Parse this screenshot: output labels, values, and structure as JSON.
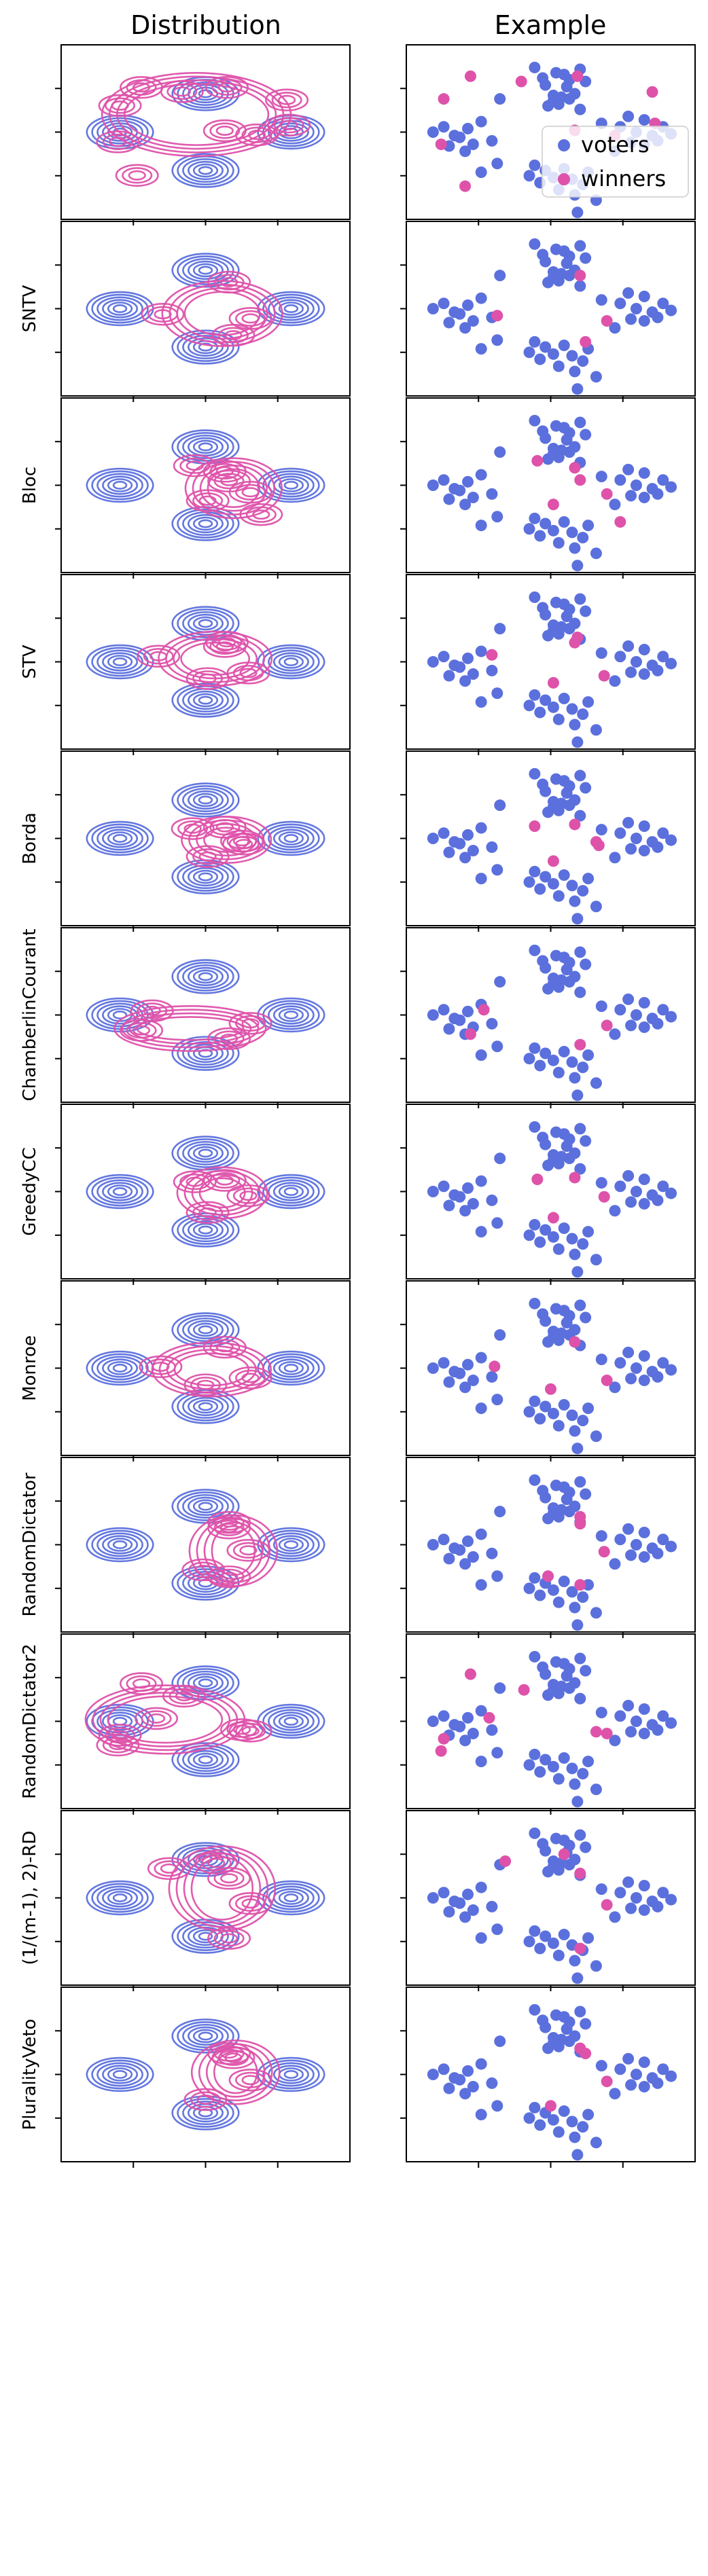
{
  "column_titles": [
    "Distribution",
    "Example"
  ],
  "legend": {
    "entries": [
      "voters",
      "winners"
    ],
    "placement": "upper-right of first Example panel"
  },
  "colors": {
    "voters": "#5b70dd",
    "winners": "#de52aa",
    "axes": "#000000"
  },
  "chart_data": {
    "type": "scatter",
    "layout": "12 rows x 2 columns of small multiples; left column contour density plots (kde), right column scatter examples",
    "ticks": "unlabeled tick marks on both axes",
    "voters": [
      [
        -0.95,
        0.95
      ],
      [
        -0.3,
        1.85
      ],
      [
        -0.15,
        1.55
      ],
      [
        0.1,
        1.7
      ],
      [
        -0.1,
        1.35
      ],
      [
        0.05,
        1.05
      ],
      [
        0.15,
        0.8
      ],
      [
        0.3,
        1.3
      ],
      [
        0.45,
        1.1
      ],
      [
        0.65,
        1.45
      ],
      [
        0.25,
        1.65
      ],
      [
        0.55,
        1.8
      ],
      [
        -2.2,
        0.0
      ],
      [
        -2.0,
        0.15
      ],
      [
        -1.8,
        -0.1
      ],
      [
        -1.55,
        0.1
      ],
      [
        -1.3,
        0.3
      ],
      [
        -1.1,
        -0.25
      ],
      [
        -1.9,
        -0.4
      ],
      [
        -1.6,
        -0.55
      ],
      [
        -1.0,
        -0.9
      ],
      [
        -1.3,
        -1.15
      ],
      [
        -1.7,
        -0.15
      ],
      [
        -1.45,
        -0.35
      ],
      [
        0.95,
        0.25
      ],
      [
        1.3,
        0.15
      ],
      [
        1.6,
        0.0
      ],
      [
        1.9,
        -0.1
      ],
      [
        2.1,
        0.15
      ],
      [
        2.25,
        -0.05
      ],
      [
        1.5,
        -0.3
      ],
      [
        1.75,
        -0.35
      ],
      [
        1.2,
        -0.55
      ],
      [
        1.45,
        0.45
      ],
      [
        1.75,
        0.35
      ],
      [
        2.0,
        -0.25
      ],
      [
        -0.3,
        -0.95
      ],
      [
        -0.1,
        -1.1
      ],
      [
        0.05,
        -1.3
      ],
      [
        0.25,
        -1.05
      ],
      [
        0.4,
        -1.35
      ],
      [
        -0.2,
        -1.45
      ],
      [
        0.15,
        -1.65
      ],
      [
        0.45,
        -1.8
      ],
      [
        0.6,
        -1.5
      ],
      [
        0.7,
        -1.15
      ],
      [
        0.85,
        -1.95
      ],
      [
        0.5,
        -2.3
      ],
      [
        -0.4,
        -1.25
      ],
      [
        0.05,
        0.9
      ],
      [
        0.2,
        1.0
      ],
      [
        -0.05,
        0.75
      ],
      [
        0.35,
        0.95
      ],
      [
        0.55,
        0.65
      ],
      [
        0.35,
        1.5
      ]
    ],
    "panels": [
      {
        "row_label": "",
        "winners": [
          [
            -1.5,
            1.6
          ],
          [
            -0.55,
            1.45
          ],
          [
            0.5,
            1.6
          ],
          [
            -2.0,
            0.95
          ],
          [
            -2.05,
            -0.35
          ],
          [
            -1.6,
            -1.55
          ],
          [
            1.9,
            1.15
          ],
          [
            1.95,
            0.25
          ],
          [
            1.2,
            -0.1
          ],
          [
            0.45,
            0.05
          ]
        ]
      },
      {
        "row_label": "SNTV",
        "winners": [
          [
            -1.0,
            -0.2
          ],
          [
            0.55,
            0.95
          ],
          [
            1.05,
            -0.35
          ],
          [
            0.65,
            -0.95
          ]
        ]
      },
      {
        "row_label": "Bloc",
        "winners": [
          [
            -0.25,
            0.7
          ],
          [
            0.45,
            0.5
          ],
          [
            1.05,
            -0.25
          ],
          [
            0.05,
            -0.55
          ],
          [
            0.55,
            0.15
          ],
          [
            1.3,
            -1.05
          ]
        ]
      },
      {
        "row_label": "STV",
        "winners": [
          [
            -1.1,
            0.2
          ],
          [
            0.45,
            0.55
          ],
          [
            1.0,
            -0.4
          ],
          [
            0.05,
            -0.6
          ],
          [
            0.5,
            0.7
          ]
        ]
      },
      {
        "row_label": "Borda",
        "winners": [
          [
            -0.3,
            0.35
          ],
          [
            0.45,
            0.4
          ],
          [
            0.85,
            -0.1
          ],
          [
            0.05,
            -0.65
          ],
          [
            0.9,
            -0.2
          ]
        ]
      },
      {
        "row_label": "ChamberlinCourant",
        "winners": [
          [
            -1.25,
            0.15
          ],
          [
            -1.5,
            -0.55
          ],
          [
            1.05,
            -0.3
          ],
          [
            0.55,
            -0.85
          ]
        ]
      },
      {
        "row_label": "GreedyCC",
        "winners": [
          [
            -0.25,
            0.35
          ],
          [
            0.45,
            0.4
          ],
          [
            1.0,
            -0.15
          ],
          [
            0.05,
            -0.75
          ]
        ]
      },
      {
        "row_label": "Monroe",
        "winners": [
          [
            -1.05,
            0.05
          ],
          [
            0.45,
            0.75
          ],
          [
            1.05,
            -0.35
          ],
          [
            0.0,
            -0.6
          ]
        ]
      },
      {
        "row_label": "RandomDictator",
        "winners": [
          [
            0.55,
            0.8
          ],
          [
            0.55,
            0.6
          ],
          [
            1.0,
            -0.2
          ],
          [
            -0.05,
            -0.9
          ],
          [
            0.55,
            -1.15
          ]
        ]
      },
      {
        "row_label": "RandomDictator2",
        "winners": [
          [
            -1.5,
            1.35
          ],
          [
            -2.0,
            -0.5
          ],
          [
            -2.05,
            -0.85
          ],
          [
            -1.15,
            0.1
          ],
          [
            -0.5,
            0.9
          ],
          [
            0.85,
            -0.3
          ],
          [
            1.05,
            -0.35
          ]
        ]
      },
      {
        "row_label": "(1/(m-1), 2)-RD",
        "winners": [
          [
            -0.85,
            1.05
          ],
          [
            0.25,
            1.25
          ],
          [
            0.55,
            0.7
          ],
          [
            1.05,
            -0.2
          ],
          [
            0.55,
            -1.45
          ]
        ]
      },
      {
        "row_label": "PluralityVeto",
        "winners": [
          [
            0.55,
            0.75
          ],
          [
            0.65,
            0.6
          ],
          [
            1.05,
            -0.2
          ],
          [
            0.0,
            -0.9
          ]
        ]
      }
    ]
  }
}
